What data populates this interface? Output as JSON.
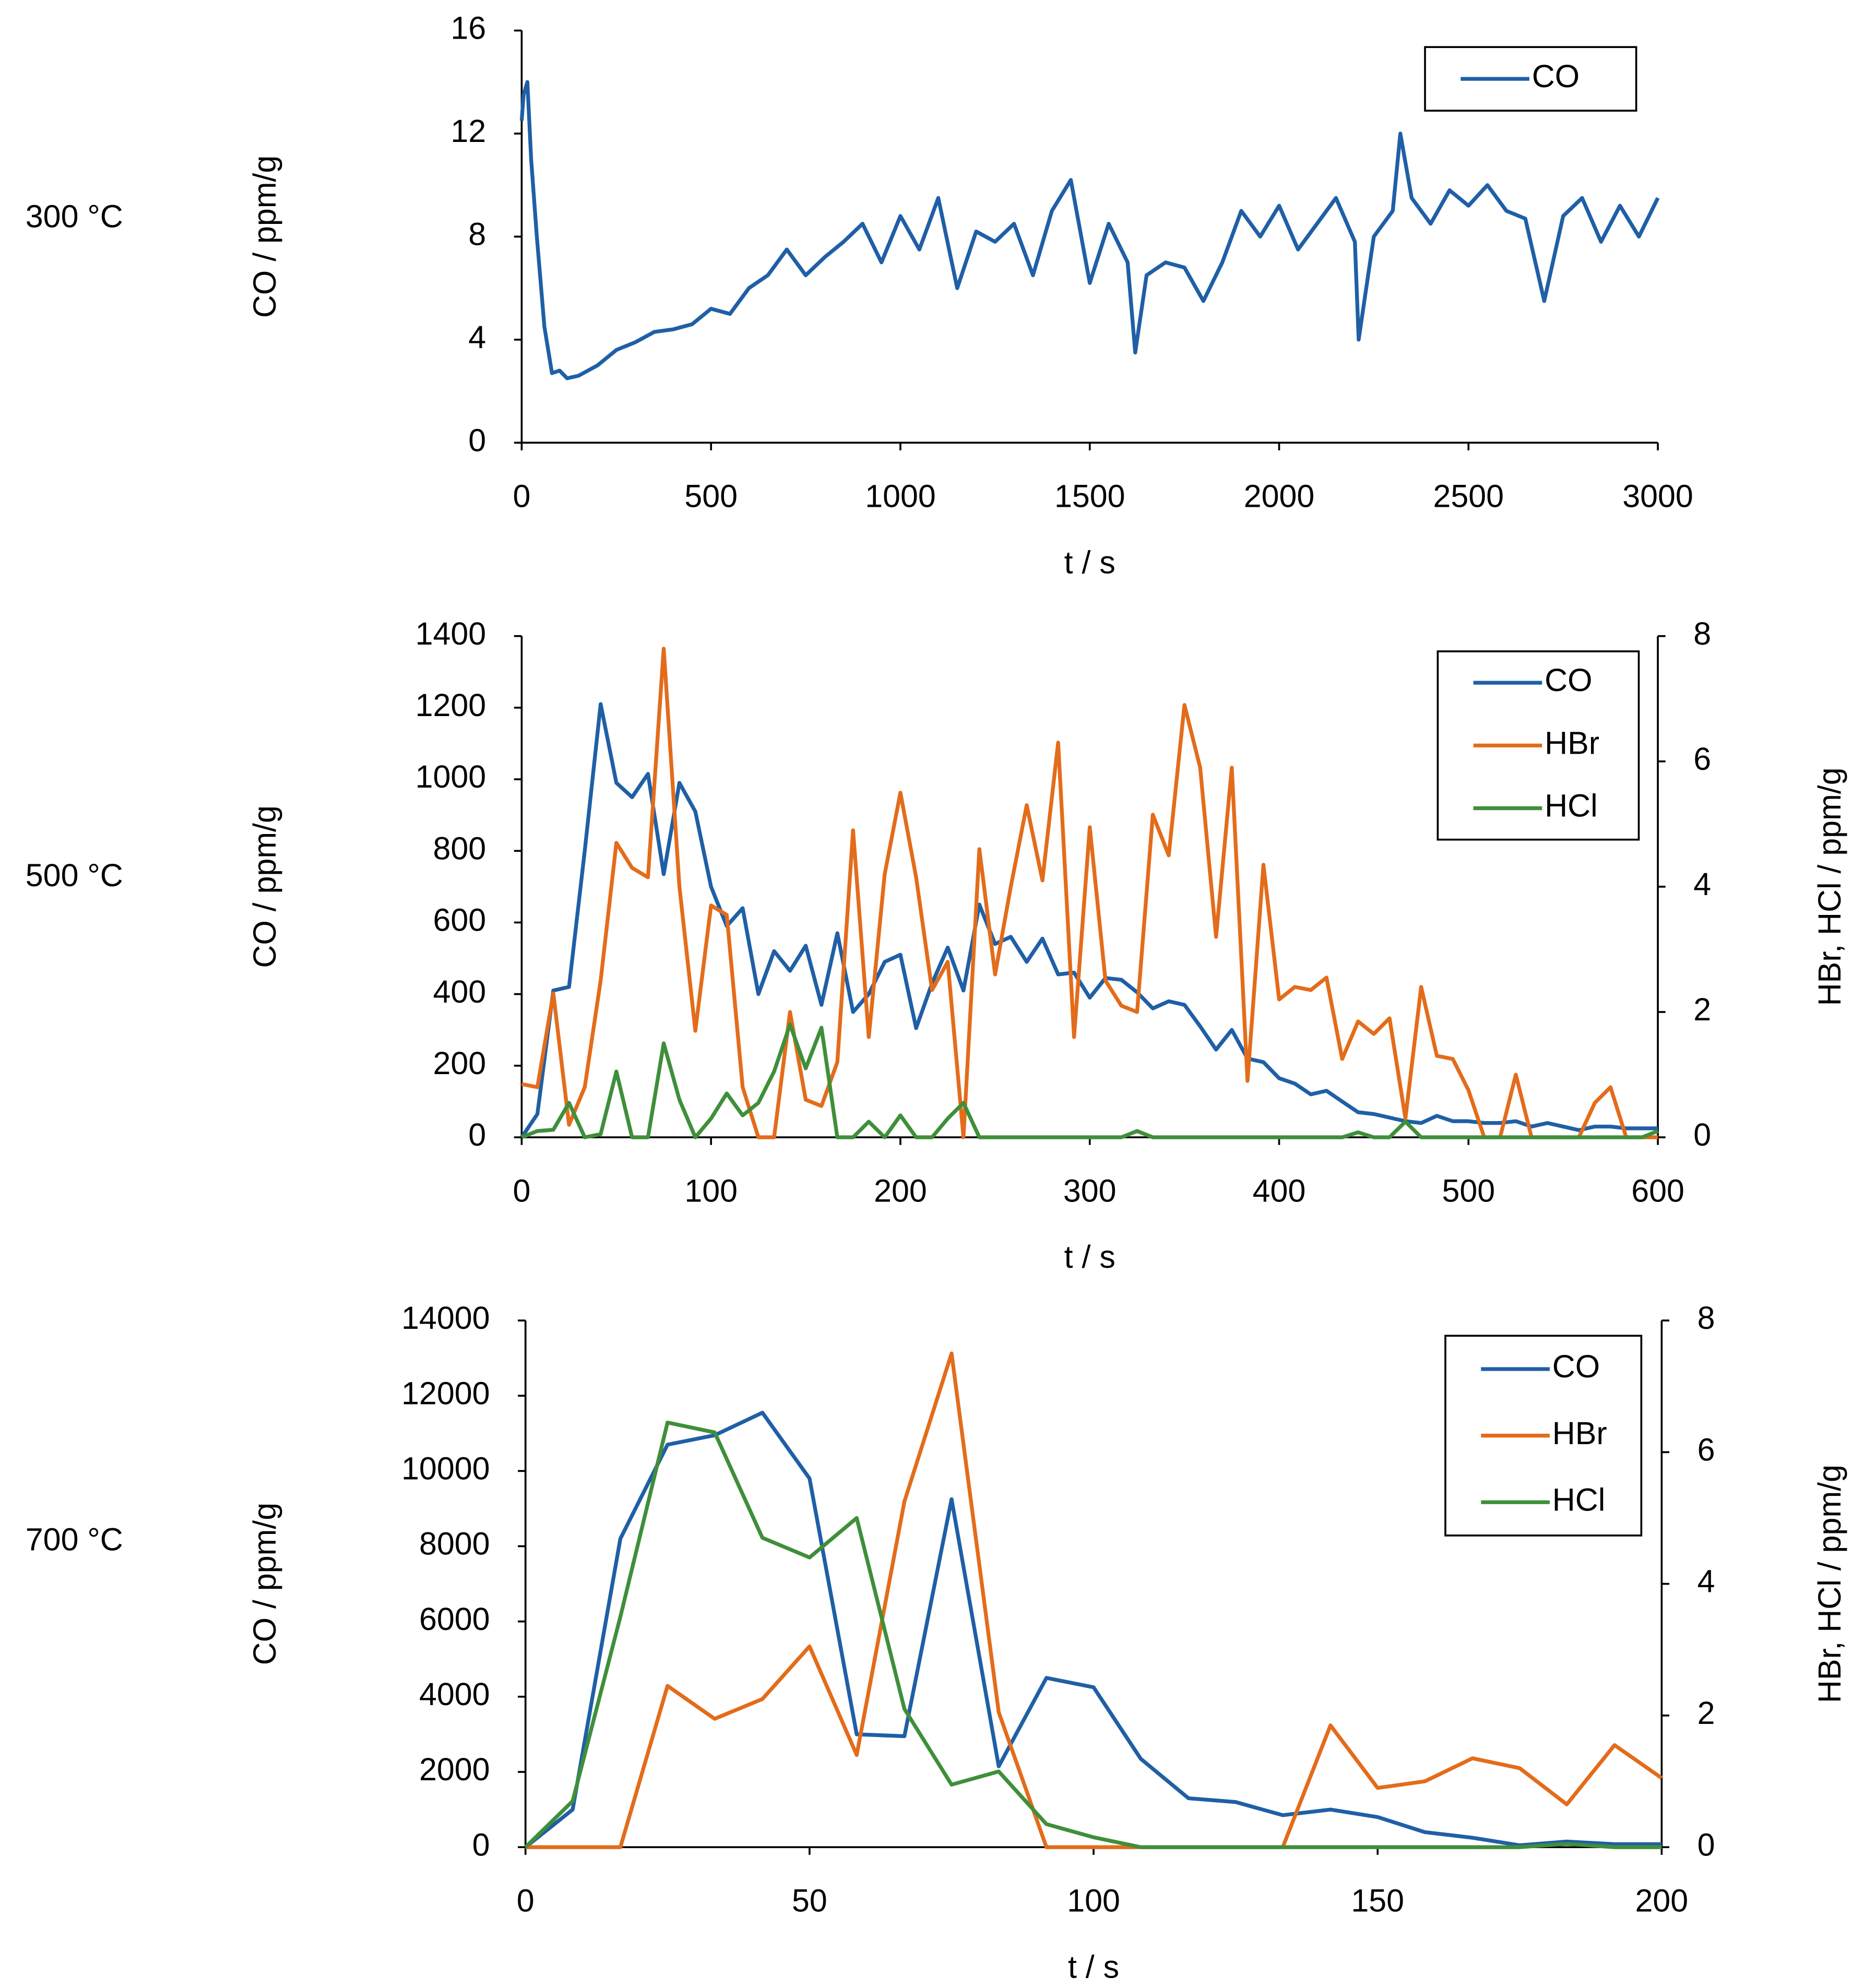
{
  "chart_data": [
    {
      "type": "line",
      "annotation": "300 °C",
      "xlabel": "t / s",
      "ylabel": "CO / ppm/g",
      "xlim": [
        0,
        3000
      ],
      "xticks": [
        0,
        500,
        1000,
        1500,
        2000,
        2500,
        3000
      ],
      "ylim": [
        0,
        16
      ],
      "yticks": [
        0,
        4,
        8,
        12,
        16
      ],
      "grid": false,
      "legend": "upper right",
      "x": [
        0,
        5,
        15,
        25,
        40,
        60,
        80,
        100,
        120,
        150,
        200,
        250,
        300,
        350,
        400,
        450,
        500,
        550,
        600,
        650,
        700,
        750,
        800,
        850,
        900,
        950,
        1000,
        1050,
        1100,
        1150,
        1200,
        1250,
        1300,
        1350,
        1400,
        1450,
        1500,
        1550,
        1600,
        1620,
        1650,
        1700,
        1750,
        1800,
        1850,
        1900,
        1950,
        2000,
        2050,
        2100,
        2150,
        2200,
        2210,
        2250,
        2300,
        2320,
        2350,
        2400,
        2450,
        2500,
        2550,
        2600,
        2650,
        2700,
        2750,
        2800,
        2850,
        2900,
        2950,
        3000
      ],
      "series": [
        {
          "name": "CO",
          "color": "#1f5fa6",
          "values": [
            12.5,
            13.5,
            14,
            11,
            8,
            4.5,
            2.7,
            2.8,
            2.5,
            2.6,
            3.0,
            3.6,
            3.9,
            4.3,
            4.4,
            4.6,
            5.2,
            5.0,
            6.0,
            6.5,
            7.5,
            6.5,
            7.2,
            7.8,
            8.5,
            7.0,
            8.8,
            7.5,
            9.5,
            6.0,
            8.2,
            7.8,
            8.5,
            6.5,
            9.0,
            10.2,
            6.2,
            8.5,
            7.0,
            3.5,
            6.5,
            7.0,
            6.8,
            5.5,
            7.0,
            9.0,
            8.0,
            9.2,
            7.5,
            8.5,
            9.5,
            7.8,
            4.0,
            8.0,
            9.0,
            12.0,
            9.5,
            8.5,
            9.8,
            9.2,
            10.0,
            9.0,
            8.7,
            5.5,
            8.8,
            9.5,
            7.8,
            9.2,
            8.0,
            9.5
          ]
        }
      ]
    },
    {
      "type": "line",
      "annotation": "500 °C",
      "xlabel": "t / s",
      "ylabel": "CO / ppm/g",
      "y2label": "HBr, HCl / ppm/g",
      "xlim": [
        0,
        600
      ],
      "xticks": [
        0,
        100,
        200,
        300,
        400,
        500,
        600
      ],
      "ylim": [
        0,
        1400
      ],
      "yticks": [
        0,
        200,
        400,
        600,
        800,
        1000,
        1200,
        1400
      ],
      "y2lim": [
        0,
        8
      ],
      "y2ticks": [
        0,
        2,
        4,
        6,
        8
      ],
      "grid": false,
      "legend": "upper right",
      "x": [
        0,
        8.3,
        16.7,
        25,
        33.3,
        41.7,
        50,
        58.3,
        66.7,
        75,
        83.3,
        91.7,
        100,
        108.3,
        116.7,
        125,
        133.3,
        141.7,
        150,
        158.3,
        166.7,
        175,
        183.3,
        191.7,
        200,
        208.3,
        216.7,
        225,
        233.3,
        241.7,
        250,
        258.3,
        266.7,
        275,
        283.3,
        291.7,
        300,
        308.3,
        316.7,
        325,
        333.3,
        341.7,
        350,
        358.3,
        366.7,
        375,
        383.3,
        391.7,
        400,
        408.3,
        416.7,
        425,
        433.3,
        441.7,
        450,
        458.3,
        466.7,
        475,
        483.3,
        491.7,
        500,
        508.3,
        516.7,
        525,
        533.3,
        541.7,
        550,
        558.3,
        566.7,
        575,
        583.3,
        591.7,
        600
      ],
      "series": [
        {
          "name": "CO",
          "color": "#1f5fa6",
          "values": [
            0,
            65,
            410,
            420,
            800,
            1210,
            990,
            950,
            1015,
            735,
            990,
            910,
            700,
            590,
            640,
            400,
            520,
            465,
            535,
            370,
            570,
            350,
            400,
            490,
            510,
            305,
            430,
            530,
            410,
            650,
            540,
            560,
            490,
            555,
            455,
            460,
            390,
            445,
            440,
            405,
            360,
            380,
            370,
            310,
            245,
            300,
            220,
            210,
            165,
            150,
            120,
            130,
            100,
            70,
            65,
            55,
            45,
            40,
            60,
            45,
            45,
            40,
            40,
            45,
            30,
            40,
            30,
            20,
            30,
            30,
            25,
            25,
            25
          ]
        },
        {
          "name": "HBr",
          "color": "#e36c1b",
          "axis": "y2",
          "values": [
            0.85,
            0.8,
            2.3,
            0.2,
            0.8,
            2.5,
            4.7,
            4.3,
            4.15,
            7.8,
            4.0,
            1.7,
            3.7,
            3.55,
            0.8,
            0,
            0,
            2.0,
            0.6,
            0.5,
            1.2,
            4.9,
            1.6,
            4.2,
            5.5,
            4.15,
            2.35,
            2.8,
            0,
            4.6,
            2.6,
            4.0,
            5.3,
            4.1,
            6.3,
            1.6,
            4.95,
            2.5,
            2.1,
            2.0,
            5.15,
            4.5,
            6.9,
            5.9,
            3.2,
            5.9,
            0.9,
            4.35,
            2.2,
            2.4,
            2.35,
            2.55,
            1.25,
            1.85,
            1.65,
            1.9,
            0.3,
            2.4,
            1.3,
            1.25,
            0.75,
            0,
            0,
            1.0,
            0,
            0,
            0,
            0,
            0.55,
            0.8,
            0,
            0,
            0
          ]
        },
        {
          "name": "HCl",
          "color": "#3f8f3a",
          "axis": "y2",
          "values": [
            0,
            0.1,
            0.12,
            0.55,
            0,
            0.05,
            1.05,
            0,
            0,
            1.5,
            0.6,
            0,
            0.3,
            0.7,
            0.35,
            0.55,
            1.05,
            1.8,
            1.1,
            1.75,
            0,
            0,
            0.25,
            0,
            0.35,
            0,
            0,
            0.3,
            0.55,
            0,
            0,
            0,
            0,
            0,
            0,
            0,
            0,
            0,
            0,
            0.1,
            0,
            0,
            0,
            0,
            0,
            0,
            0,
            0,
            0,
            0,
            0,
            0,
            0,
            0.08,
            0,
            0,
            0.25,
            0,
            0,
            0,
            0,
            0,
            0,
            0,
            0,
            0,
            0,
            0,
            0,
            0,
            0,
            0,
            0.1
          ]
        }
      ]
    },
    {
      "type": "line",
      "annotation": "700 °C",
      "xlabel": "t / s",
      "ylabel": "CO / ppm/g",
      "y2label": "HBr, HCl / ppm/g",
      "xlim": [
        0,
        200
      ],
      "xticks": [
        0,
        50,
        100,
        150,
        200
      ],
      "ylim": [
        0,
        14000
      ],
      "yticks": [
        0,
        2000,
        4000,
        6000,
        8000,
        10000,
        12000,
        14000
      ],
      "y2lim": [
        0,
        8
      ],
      "y2ticks": [
        0,
        2,
        4,
        6,
        8
      ],
      "grid": false,
      "legend": "upper right",
      "x": [
        0,
        8.3,
        16.7,
        25,
        33.3,
        41.7,
        50,
        58.3,
        66.7,
        75,
        83.3,
        91.7,
        100,
        108.3,
        116.7,
        125,
        133.3,
        141.7,
        150,
        158.3,
        166.7,
        175,
        183.3,
        191.7,
        200
      ],
      "series": [
        {
          "name": "CO",
          "color": "#1f5fa6",
          "values": [
            0,
            1000,
            8200,
            10700,
            10950,
            11550,
            9800,
            3000,
            2950,
            9250,
            2150,
            4500,
            4250,
            2350,
            1300,
            1200,
            850,
            1000,
            800,
            400,
            250,
            50,
            150,
            80,
            80
          ]
        },
        {
          "name": "HBr",
          "color": "#e36c1b",
          "axis": "y2",
          "values": [
            0,
            0,
            0,
            2.45,
            1.95,
            2.25,
            3.05,
            1.4,
            5.25,
            7.5,
            2.05,
            0,
            0,
            0,
            0,
            0,
            0,
            1.85,
            0.9,
            1.0,
            1.35,
            1.2,
            0.65,
            1.55,
            1.05
          ]
        },
        {
          "name": "HCl",
          "color": "#3f8f3a",
          "axis": "y2",
          "values": [
            0,
            0.7,
            3.5,
            6.45,
            6.3,
            4.7,
            4.4,
            5.0,
            2.1,
            0.95,
            1.15,
            0.35,
            0.15,
            0,
            0,
            0,
            0,
            0,
            0,
            0,
            0,
            0,
            0.05,
            0,
            0
          ]
        }
      ]
    }
  ]
}
